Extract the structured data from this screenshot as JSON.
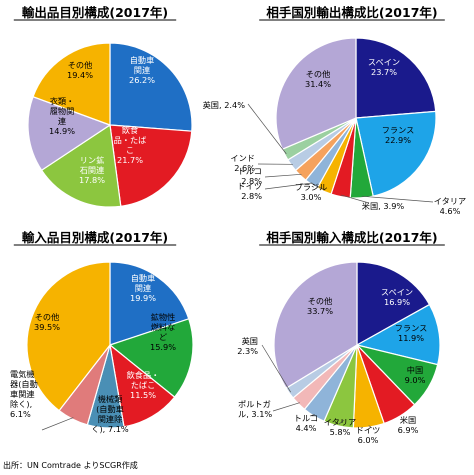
{
  "source_note": "出所：UN Comtrade よりSCGR作成",
  "chart_data": [
    {
      "type": "pie",
      "title": "輸出品目別構成(2017年)",
      "series": [
        {
          "values": [
            26.2,
            21.7,
            17.8,
            14.9,
            19.4
          ],
          "labels": [
            [
              "自動車",
              "関連",
              "26.2%"
            ],
            [
              "飲食",
              "品・たば",
              "こ",
              "21.7%"
            ],
            [
              "リン鉱",
              "石関連",
              "17.8%"
            ],
            [
              "衣類・",
              "履物関",
              "連",
              "14.9%"
            ],
            [
              "その他",
              "19.4%"
            ]
          ],
          "colors": [
            "#1f6fc5",
            "#e31b23",
            "#8cc63f",
            "#b4a7d6",
            "#f6b300"
          ]
        }
      ]
    },
    {
      "type": "pie",
      "title": "相手国別輸出構成比(2017年)",
      "series": [
        {
          "values": [
            23.7,
            22.9,
            4.6,
            3.9,
            3.0,
            2.8,
            2.8,
            2.6,
            2.4,
            31.4
          ],
          "labels": [
            [
              "スペイン",
              "23.7%"
            ],
            [
              "フランス",
              "22.9%"
            ],
            [
              "イタリア",
              "4.6%"
            ],
            [
              "米国, 3.9%"
            ],
            [
              "ブラジル",
              "3.0%"
            ],
            [
              "ドイツ",
              "2.8%"
            ],
            [
              "トルコ",
              "2.8%"
            ],
            [
              "インド",
              "2.6%"
            ],
            [
              "英国, 2.4%"
            ],
            [
              "その他",
              "31.4%"
            ]
          ],
          "colors": [
            "#1a1a8c",
            "#1ea4e8",
            "#22a83a",
            "#e31b23",
            "#f6b300",
            "#8fb4d9",
            "#f5a25d",
            "#b8cce4",
            "#9bd0a0",
            "#b4a7d6"
          ]
        }
      ]
    },
    {
      "type": "pie",
      "title": "輸入品目別構成(2017年)",
      "series": [
        {
          "values": [
            19.9,
            15.9,
            11.5,
            7.1,
            6.1,
            39.5
          ],
          "labels": [
            [
              "自動車",
              "関連",
              "19.9%"
            ],
            [
              "鉱物性",
              "燃料な",
              "ど",
              "15.9%"
            ],
            [
              "飲食品・",
              "たばこ",
              "11.5%"
            ],
            [
              "機械類",
              "(自動車",
              "関連除",
              "く), 7.1%"
            ],
            [
              "電気機",
              "器(自動",
              "車関連",
              "除く),",
              "6.1%"
            ],
            [
              "その他",
              "39.5%"
            ]
          ],
          "colors": [
            "#1f6fc5",
            "#22a83a",
            "#e31b23",
            "#4a8fb5",
            "#e07b7b",
            "#f6b300"
          ]
        }
      ]
    },
    {
      "type": "pie",
      "title": "相手国別輸入構成比(2017年)",
      "series": [
        {
          "values": [
            16.9,
            11.9,
            9.0,
            6.9,
            6.0,
            5.8,
            4.4,
            3.1,
            2.3,
            33.7
          ],
          "labels": [
            [
              "スペイン",
              "16.9%"
            ],
            [
              "フランス",
              "11.9%"
            ],
            [
              "中国",
              "9.0%"
            ],
            [
              "米国",
              "6.9%"
            ],
            [
              "ドイツ",
              "6.0%"
            ],
            [
              "イタリア",
              "5.8%"
            ],
            [
              "トルコ",
              "4.4%"
            ],
            [
              "ポルトガ",
              "ル, 3.1%"
            ],
            [
              "英国",
              "2.3%"
            ],
            [
              "その他",
              "33.7%"
            ]
          ],
          "colors": [
            "#1a1a8c",
            "#1ea4e8",
            "#22a83a",
            "#e31b23",
            "#f6b300",
            "#8cc63f",
            "#8fb4d9",
            "#f2b8b8",
            "#b8cce4",
            "#b4a7d6"
          ]
        }
      ]
    }
  ]
}
